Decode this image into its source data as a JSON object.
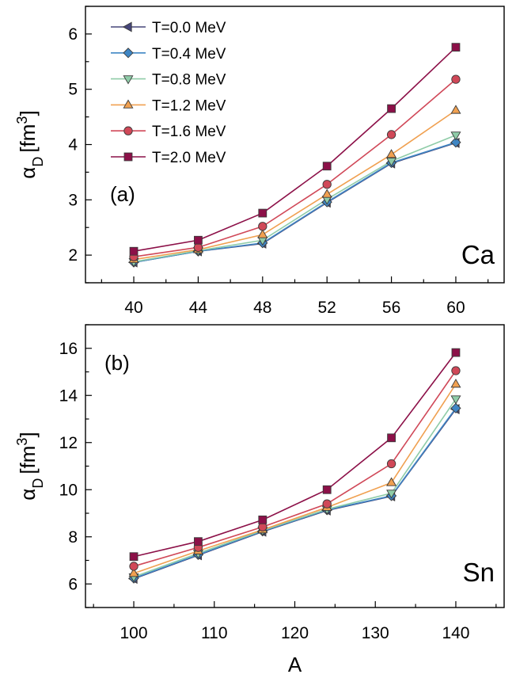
{
  "colors": {
    "T=0.0 MeV": "#46467a",
    "T=0.4 MeV": "#3f86c4",
    "T=0.8 MeV": "#8fcca8",
    "T=1.2 MeV": "#f0a050",
    "T=1.6 MeV": "#d04858",
    "T=2.0 MeV": "#8c1048"
  },
  "markers": {
    "T=0.0 MeV": "triangle-left",
    "T=0.4 MeV": "diamond",
    "T=0.8 MeV": "triangle-down",
    "T=1.2 MeV": "triangle-up",
    "T=1.6 MeV": "circle",
    "T=2.0 MeV": "square"
  },
  "chart_data": [
    {
      "type": "line",
      "panel_label": "(a)",
      "nucleus": "Ca",
      "xlabel": "",
      "ylabel": "αD [fm3]",
      "ylabel_parts": {
        "symbol": "α",
        "sub": "D",
        "unit": "[fm",
        "sup": "3",
        "close": "]"
      },
      "x": [
        40,
        44,
        48,
        52,
        56,
        60
      ],
      "xlim": [
        37,
        63
      ],
      "ylim": [
        1.5,
        6.5
      ],
      "xticks": [
        40,
        44,
        48,
        52,
        56,
        60
      ],
      "yticks": [
        2,
        3,
        4,
        5,
        6
      ],
      "legend_position": "top-left",
      "series": [
        {
          "name": "T=0.0 MeV",
          "values": [
            1.87,
            2.07,
            2.21,
            2.95,
            3.66,
            4.03
          ]
        },
        {
          "name": "T=0.4 MeV",
          "values": [
            1.87,
            2.07,
            2.22,
            2.96,
            3.67,
            4.04
          ]
        },
        {
          "name": "T=0.8 MeV",
          "values": [
            1.88,
            2.08,
            2.27,
            3.01,
            3.7,
            4.17
          ]
        },
        {
          "name": "T=1.2 MeV",
          "values": [
            1.92,
            2.1,
            2.37,
            3.1,
            3.82,
            4.62
          ]
        },
        {
          "name": "T=1.6 MeV",
          "values": [
            1.97,
            2.14,
            2.52,
            3.28,
            4.18,
            5.18
          ]
        },
        {
          "name": "T=2.0 MeV",
          "values": [
            2.07,
            2.27,
            2.76,
            3.61,
            4.65,
            5.76
          ]
        }
      ]
    },
    {
      "type": "line",
      "panel_label": "(b)",
      "nucleus": "Sn",
      "xlabel": "A",
      "ylabel": "αD [fm3]",
      "ylabel_parts": {
        "symbol": "α",
        "sub": "D",
        "unit": "[fm",
        "sup": "3",
        "close": "]"
      },
      "x": [
        100,
        108,
        116,
        124,
        132,
        140
      ],
      "xlim": [
        94,
        146
      ],
      "ylim": [
        5,
        17
      ],
      "xticks": [
        100,
        110,
        120,
        130,
        140
      ],
      "yticks": [
        6,
        8,
        10,
        12,
        14,
        16
      ],
      "legend_position": "none",
      "series": [
        {
          "name": "T=0.0 MeV",
          "values": [
            6.22,
            7.22,
            8.22,
            9.12,
            9.72,
            13.42
          ]
        },
        {
          "name": "T=0.4 MeV",
          "values": [
            6.24,
            7.24,
            8.24,
            9.14,
            9.74,
            13.46
          ]
        },
        {
          "name": "T=0.8 MeV",
          "values": [
            6.3,
            7.3,
            8.27,
            9.17,
            9.85,
            13.85
          ]
        },
        {
          "name": "T=1.2 MeV",
          "values": [
            6.45,
            7.4,
            8.3,
            9.25,
            10.3,
            14.48
          ]
        },
        {
          "name": "T=1.6 MeV",
          "values": [
            6.75,
            7.55,
            8.42,
            9.4,
            11.1,
            15.05
          ]
        },
        {
          "name": "T=2.0 MeV",
          "values": [
            7.16,
            7.8,
            8.72,
            10.0,
            12.2,
            15.82
          ]
        }
      ]
    }
  ]
}
